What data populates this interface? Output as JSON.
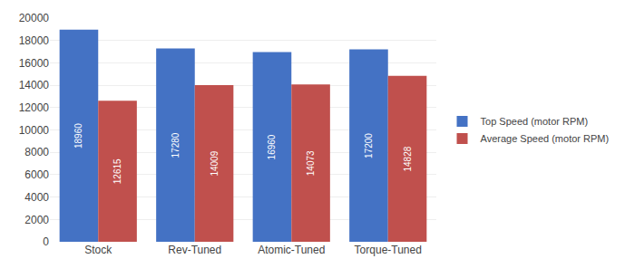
{
  "chart_data": {
    "type": "bar",
    "categories": [
      "Stock",
      "Rev-Tuned",
      "Atomic-Tuned",
      "Torque-Tuned"
    ],
    "series": [
      {
        "name": "Top Speed (motor RPM)",
        "color": "#4472C4",
        "values": [
          18960,
          17280,
          16960,
          17200
        ]
      },
      {
        "name": "Average Speed (motor RPM)",
        "color": "#C0504D",
        "values": [
          12615,
          14009,
          14073,
          14828
        ]
      }
    ],
    "ylim": [
      0,
      20000
    ],
    "yticks": [
      0,
      2000,
      4000,
      6000,
      8000,
      10000,
      12000,
      14000,
      16000,
      18000,
      20000
    ],
    "grid": true,
    "legend": "right",
    "data_labels": true
  }
}
